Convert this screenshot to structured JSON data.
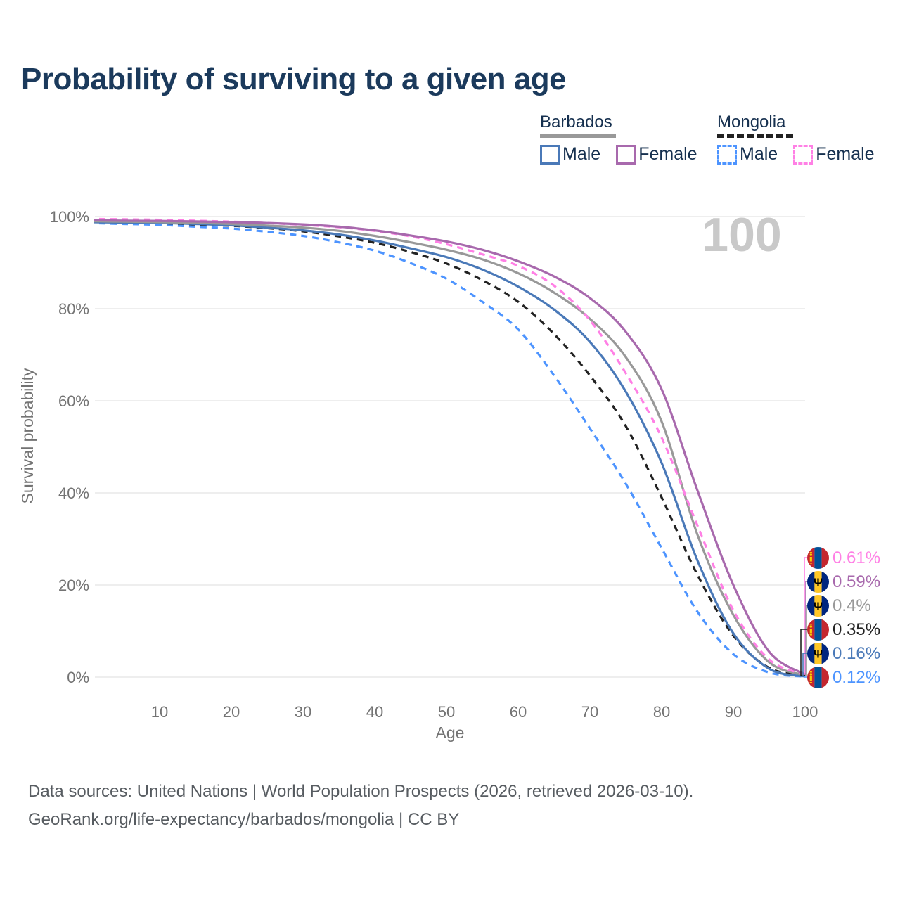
{
  "title": "Probability of surviving to a given age",
  "colors": {
    "title": "#1b3a5c",
    "text": "#16304f",
    "axis": "#737373",
    "grid": "#e8e8e8",
    "counter": "#c9c9c9",
    "footer": "#575c61"
  },
  "legend": {
    "groups": [
      {
        "country": "Barbados",
        "line_style": "solid",
        "underline_color": "#999999",
        "items": [
          {
            "label": "Male",
            "color": "#4a79b8"
          },
          {
            "label": "Female",
            "color": "#a869ad"
          }
        ]
      },
      {
        "country": "Mongolia",
        "line_style": "dashed",
        "underline_color": "#222222",
        "items": [
          {
            "label": "Male",
            "color": "#4d94ff"
          },
          {
            "label": "Female",
            "color": "#ff80e5"
          }
        ]
      }
    ]
  },
  "flags": {
    "barbados": {
      "blue": "#00267f",
      "gold": "#ffc726",
      "trident": "#000000"
    },
    "mongolia": {
      "red": "#c4272f",
      "blue": "#015197",
      "soyombo": "#f9cf02"
    }
  },
  "chart_data": {
    "type": "line",
    "title": "Probability of surviving to a given age",
    "xlabel": "Age",
    "ylabel": "Survival probability",
    "xlim": [
      0,
      100
    ],
    "ylim": [
      0,
      100
    ],
    "x_ticks": [
      10,
      20,
      30,
      40,
      50,
      60,
      70,
      80,
      90,
      100
    ],
    "y_ticks": [
      0,
      20,
      40,
      60,
      80,
      100
    ],
    "y_tick_format": "percent",
    "grid": "horizontal",
    "age_counter": "100",
    "x": [
      0,
      5,
      10,
      15,
      20,
      25,
      30,
      35,
      40,
      45,
      50,
      55,
      60,
      65,
      70,
      75,
      80,
      85,
      90,
      95,
      100
    ],
    "series": [
      {
        "name": "Mongolia Male",
        "country": "Mongolia",
        "sex": "Male",
        "color": "#4d94ff",
        "dash": "dashed",
        "values": [
          98.6,
          98.4,
          98.2,
          97.8,
          97.4,
          96.7,
          95.8,
          94.4,
          92.6,
          89.9,
          86.5,
          81.5,
          75.5,
          65.5,
          54.0,
          42.0,
          28.0,
          14.2,
          5.0,
          1.0,
          0.12
        ]
      },
      {
        "name": "Mongolia",
        "country": "Mongolia",
        "sex": "Both",
        "color": "#222222",
        "dash": "dashed",
        "values": [
          98.9,
          98.75,
          98.6,
          98.3,
          98.0,
          97.5,
          96.8,
          95.7,
          94.3,
          92.3,
          89.8,
          86.2,
          81.5,
          74.5,
          65.5,
          54.5,
          39.0,
          22.2,
          9.0,
          2.0,
          0.35
        ]
      },
      {
        "name": "Barbados Male",
        "country": "Barbados",
        "sex": "Male",
        "color": "#4a79b8",
        "dash": "solid",
        "values": [
          98.8,
          98.7,
          98.6,
          98.4,
          98.1,
          97.6,
          97.0,
          96.1,
          94.8,
          93.1,
          91.2,
          88.5,
          84.8,
          79.8,
          72.8,
          62.0,
          46.5,
          25.3,
          9.5,
          1.8,
          0.16
        ]
      },
      {
        "name": "Barbados",
        "country": "Barbados",
        "sex": "Both",
        "color": "#999999",
        "dash": "solid",
        "values": [
          99.0,
          98.9,
          98.8,
          98.65,
          98.4,
          98.05,
          97.6,
          96.9,
          95.8,
          94.4,
          92.8,
          90.7,
          87.7,
          83.5,
          77.8,
          69.5,
          55.5,
          30.9,
          13.5,
          3.2,
          0.4
        ]
      },
      {
        "name": "Mongolia Female",
        "country": "Mongolia",
        "sex": "Female",
        "color": "#ff80e5",
        "dash": "dashed",
        "values": [
          99.5,
          99.4,
          99.3,
          99.1,
          98.9,
          98.6,
          98.2,
          97.7,
          96.9,
          95.7,
          94.0,
          91.8,
          89.3,
          85.0,
          77.5,
          66.0,
          52.0,
          32.9,
          14.5,
          3.8,
          0.61
        ]
      },
      {
        "name": "Barbados Female",
        "country": "Barbados",
        "sex": "Female",
        "color": "#a869ad",
        "dash": "solid",
        "values": [
          99.2,
          99.1,
          99.05,
          98.95,
          98.8,
          98.6,
          98.3,
          97.8,
          97.0,
          95.9,
          94.6,
          92.8,
          90.3,
          87.0,
          82.3,
          75.0,
          62.5,
          40.5,
          20.0,
          5.5,
          0.59
        ]
      }
    ],
    "end_labels": [
      {
        "text": "0.61%",
        "flag": "mongolia",
        "color": "#ff80e5",
        "series": "Mongolia Female"
      },
      {
        "text": "0.59%",
        "flag": "barbados",
        "color": "#a869ad",
        "series": "Barbados Female"
      },
      {
        "text": "0.4%",
        "flag": "barbados",
        "color": "#999999",
        "series": "Barbados"
      },
      {
        "text": "0.35%",
        "flag": "mongolia",
        "color": "#222222",
        "series": "Mongolia"
      },
      {
        "text": "0.16%",
        "flag": "barbados",
        "color": "#4a79b8",
        "series": "Barbados Male"
      },
      {
        "text": "0.12%",
        "flag": "mongolia",
        "color": "#4d94ff",
        "series": "Mongolia Male"
      }
    ]
  },
  "footer": {
    "line1": "Data sources: United Nations | World Population Prospects (2026, retrieved 2026-03-10).",
    "line2": "GeoRank.org/life-expectancy/barbados/mongolia | CC BY"
  }
}
